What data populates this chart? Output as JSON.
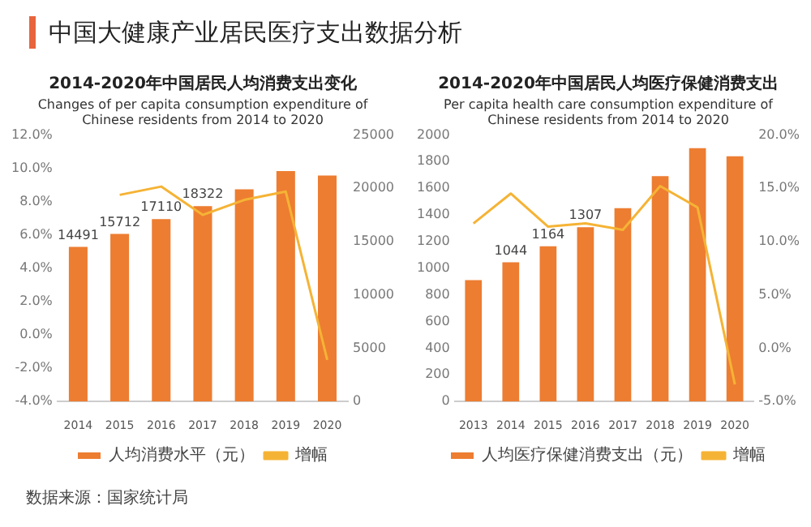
{
  "chart_data": [
    {
      "type": "bar",
      "title": "2014-2020年中国居民人均消费支出变化",
      "subtitle": "Changes of per capita consumption expenditure of Chinese residents from 2014 to 2020",
      "annotations": [
        "中国大健康产业居民医疗支出数据分析",
        "数据来源：国家统计局"
      ],
      "categories": [
        "2014",
        "2015",
        "2016",
        "2017",
        "2018",
        "2019",
        "2020"
      ],
      "series": [
        {
          "name": "人均消费水平（元）",
          "axis": "y2",
          "color": "#ed7d31",
          "values": [
            14491,
            15712,
            17110,
            18322,
            19900,
            21600,
            21200
          ],
          "value_labels": [
            "14491",
            "15712",
            "17110",
            "18322",
            null,
            null,
            null
          ]
        },
        {
          "name": "增幅",
          "type": "line",
          "color": "#f5b335",
          "values": [
            null,
            8.4,
            8.9,
            7.2,
            8.1,
            8.6,
            -1.5
          ]
        }
      ],
      "ylim": [
        -4,
        12
      ],
      "yticks": [
        {
          "value": -4,
          "label": "-4.0%"
        },
        {
          "value": -2,
          "label": "-2.0%"
        },
        {
          "value": 0,
          "label": "0.0%"
        },
        {
          "value": 2,
          "label": "2.0%"
        },
        {
          "value": 4,
          "label": "4.0%"
        },
        {
          "value": 6,
          "label": "6.0%"
        },
        {
          "value": 8,
          "label": "8.0%"
        },
        {
          "value": 10,
          "label": "10.0%"
        },
        {
          "value": 12,
          "label": "12.0%"
        }
      ],
      "y2lim": [
        0,
        25000
      ],
      "y2ticks": [
        0,
        5000,
        10000,
        15000,
        20000,
        25000
      ],
      "legend": "bottom",
      "marker": "none"
    },
    {
      "type": "bar",
      "title": "2014-2020年中国居民人均医疗保健消费支出",
      "subtitle": "Per capita health care consumption expenditure of Chinese residents from 2014 to 2020",
      "categories": [
        "2013",
        "2014",
        "2015",
        "2016",
        "2017",
        "2018",
        "2019",
        "2020"
      ],
      "series": [
        {
          "name": "人均医疗保健消费支出（元）",
          "color": "#ed7d31",
          "values": [
            910,
            1044,
            1164,
            1307,
            1450,
            1690,
            1900,
            1840
          ],
          "value_labels": [
            null,
            "1044",
            "1164",
            "1307",
            null,
            null,
            null,
            null
          ]
        },
        {
          "name": "增幅",
          "type": "line",
          "axis": "y2",
          "color": "#f5b335",
          "values": [
            11.7,
            14.5,
            11.4,
            11.7,
            11.1,
            15.2,
            13.2,
            -3.4
          ]
        }
      ],
      "ylim": [
        0,
        2000
      ],
      "yticks": [
        0,
        200,
        400,
        600,
        800,
        1000,
        1200,
        1400,
        1600,
        1800,
        2000
      ],
      "y2lim": [
        -5,
        20
      ],
      "y2ticks": [
        {
          "value": -5,
          "label": "-5.0%"
        },
        {
          "value": 0,
          "label": "0.0%"
        },
        {
          "value": 5,
          "label": "5.0%"
        },
        {
          "value": 10,
          "label": "10.0%"
        },
        {
          "value": 15,
          "label": "15.0%"
        },
        {
          "value": 20,
          "label": "20.0%"
        }
      ],
      "legend": "bottom",
      "marker": "none"
    }
  ]
}
